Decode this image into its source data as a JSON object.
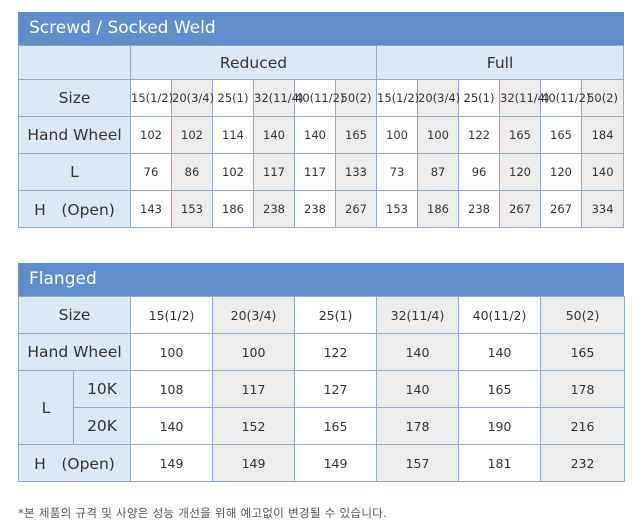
{
  "screwd": {
    "title": "Screwd / Socked Weld",
    "reduced_label": "Reduced",
    "full_label": "Full",
    "size_label": "Size",
    "sizes": [
      "15(1/2)",
      "20(3/4)",
      "25(1)",
      "32(11/4)",
      "40(11/2)",
      "50(2)"
    ],
    "rows": [
      {
        "label": "Hand Wheel",
        "reduced": [
          "102",
          "102",
          "114",
          "140",
          "140",
          "165"
        ],
        "full": [
          "100",
          "100",
          "122",
          "165",
          "165",
          "184"
        ]
      },
      {
        "label": "L",
        "reduced": [
          "76",
          "86",
          "102",
          "117",
          "117",
          "133"
        ],
        "full": [
          "73",
          "87",
          "96",
          "120",
          "120",
          "140"
        ]
      },
      {
        "label": "H　(Open)",
        "reduced": [
          "143",
          "153",
          "186",
          "238",
          "238",
          "267"
        ],
        "full": [
          "153",
          "186",
          "238",
          "267",
          "267",
          "334"
        ]
      }
    ]
  },
  "flanged": {
    "title": "Flanged",
    "size_label": "Size",
    "sizes": [
      "15(1/2)",
      "20(3/4)",
      "25(1)",
      "32(11/4)",
      "40(11/2)",
      "50(2)"
    ],
    "hand_wheel": {
      "label": "Hand Wheel",
      "values": [
        "100",
        "100",
        "122",
        "140",
        "140",
        "165"
      ]
    },
    "l": {
      "label": "L",
      "k10": {
        "label": "10K",
        "values": [
          "108",
          "117",
          "127",
          "140",
          "165",
          "178"
        ]
      },
      "k20": {
        "label": "20K",
        "values": [
          "140",
          "152",
          "165",
          "178",
          "190",
          "216"
        ]
      }
    },
    "h_open": {
      "label": "H　(Open)",
      "values": [
        "149",
        "149",
        "149",
        "157",
        "181",
        "232"
      ]
    }
  },
  "footnote": "*본 제품의 규격 및 사양은 성능 개선을 위해 예고없이 변경될 수 있습니다."
}
